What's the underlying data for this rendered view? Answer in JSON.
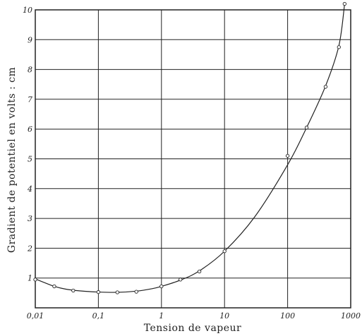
{
  "chart_data": {
    "type": "scatter",
    "xlabel": "Tension de vapeur",
    "ylabel": "Gradient de potentiel en volts : cm",
    "x_scale": "log",
    "xlim": [
      0.01,
      1000
    ],
    "ylim": [
      0,
      10
    ],
    "grid": true,
    "x_tick_values": [
      0.01,
      0.1,
      1,
      10,
      100,
      1000
    ],
    "x_tick_labels": [
      "0,01",
      "0,1",
      "1",
      "10",
      "100",
      "1000"
    ],
    "y_tick_values": [
      1,
      2,
      3,
      4,
      5,
      6,
      7,
      8,
      9,
      10
    ],
    "y_tick_labels": [
      "1",
      "2",
      "3",
      "4",
      "5",
      "6",
      "7",
      "8",
      "9",
      "10"
    ],
    "series": [
      {
        "points": [
          [
            0.01,
            0.95
          ],
          [
            0.02,
            0.72
          ],
          [
            0.04,
            0.58
          ],
          [
            0.1,
            0.53
          ],
          [
            0.2,
            0.52
          ],
          [
            0.4,
            0.54
          ],
          [
            1,
            0.72
          ],
          [
            2,
            0.95
          ],
          [
            4,
            1.22
          ],
          [
            10,
            1.9
          ],
          [
            100,
            5.1
          ],
          [
            200,
            6.05
          ],
          [
            400,
            7.42
          ],
          [
            650,
            8.75
          ],
          [
            800,
            10.2
          ]
        ]
      }
    ],
    "curve": [
      [
        0.01,
        0.97
      ],
      [
        0.015,
        0.82
      ],
      [
        0.02,
        0.72
      ],
      [
        0.03,
        0.63
      ],
      [
        0.05,
        0.57
      ],
      [
        0.1,
        0.53
      ],
      [
        0.2,
        0.52
      ],
      [
        0.4,
        0.56
      ],
      [
        0.7,
        0.64
      ],
      [
        1,
        0.72
      ],
      [
        2,
        0.93
      ],
      [
        4,
        1.24
      ],
      [
        10,
        1.9
      ],
      [
        30,
        3.05
      ],
      [
        100,
        4.8
      ],
      [
        200,
        6.05
      ],
      [
        400,
        7.45
      ],
      [
        650,
        8.8
      ],
      [
        800,
        10.2
      ]
    ]
  }
}
